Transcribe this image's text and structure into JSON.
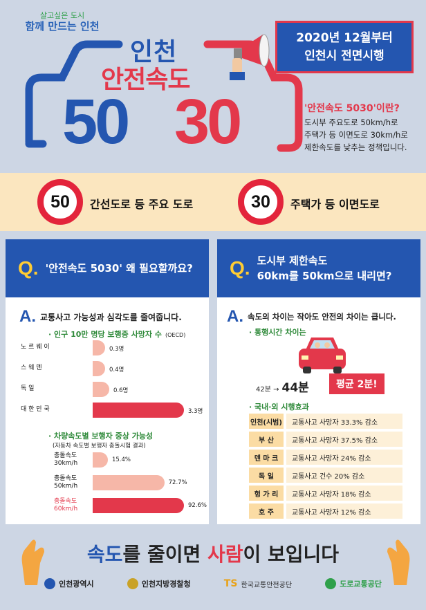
{
  "header": {
    "slogan_line1": "살고싶은 도시",
    "slogan_line2": "함께 만드는 인천",
    "title_city": "인천",
    "title_main": "안전속도",
    "big_50": "50",
    "big_30": "30",
    "date_line1": "2020년 12월부터",
    "date_line2": "인천시 전면시행"
  },
  "definition": {
    "title": "'안전속도 5030'이란?",
    "line1": "도시부 주요도로 50km/h로",
    "line2": "주택가 등 이면도로 30km/h로",
    "line3": "제한속도를 낮추는 정책입니다."
  },
  "band": {
    "sign_50": "50",
    "label_50": "간선도로 등 주요 도로",
    "sign_30": "30",
    "label_30": "주택가 등 이면도로"
  },
  "left_panel": {
    "q_mark": "Q.",
    "question": "'안전속도 5030' 왜 필요할까요?",
    "a_mark": "A.",
    "answer": "교통사고 가능성과 심각도를 줄여줍니다.",
    "chart1_title": "· 인구 10만 명당 보행중 사망자 수",
    "chart1_note": "(OECD)",
    "chart2_title": "· 차량속도별 보행자 중상 가능성",
    "chart2_note": "(자동차 속도별 보행자 충돌시험 결과)"
  },
  "chart_data": [
    {
      "type": "bar",
      "title": "인구 10만 명당 보행중 사망자 수",
      "categories": [
        "노 르 웨 이",
        "스 웨 덴",
        "독 일",
        "대 한 민 국"
      ],
      "values": [
        0.3,
        0.4,
        0.6,
        3.3
      ],
      "value_labels": [
        "0.3명",
        "0.4명",
        "0.6명",
        "3.3명"
      ],
      "colors": [
        "#f6b7a8",
        "#f6b7a8",
        "#f6b7a8",
        "#e3384b"
      ]
    },
    {
      "type": "bar",
      "title": "차량속도별 보행자 중상 가능성",
      "categories": [
        "충돌속도 30km/h",
        "충돌속도 50km/h",
        "충돌속도 60km/h"
      ],
      "values": [
        15.4,
        72.7,
        92.6
      ],
      "value_labels": [
        "15.4%",
        "72.7%",
        "92.6%"
      ],
      "colors": [
        "#f6b7a8",
        "#f6b7a8",
        "#e3384b"
      ]
    }
  ],
  "right_panel": {
    "q_mark": "Q.",
    "question_line1": "도시부 제한속도",
    "question_line2": "60km를 50km으로 내리면?",
    "a_mark": "A.",
    "answer": "속도의 차이는 작아도 안전의 차이는 큽니다.",
    "travel_title": "· 통행시간 차이는",
    "travel_from": "42분 →",
    "travel_to": "44분",
    "travel_badge": "평균 2분!",
    "effect_title": "· 국내·외 시행효과",
    "effects": [
      {
        "city": "인천(시범)",
        "desc": "교통사고 사망자 33.3% 감소"
      },
      {
        "city": "부 산",
        "desc": "교통사고 사망자 37.5% 감소"
      },
      {
        "city": "덴 마 크",
        "desc": "교통사고 사망자 24% 감소"
      },
      {
        "city": "독 일",
        "desc": "교통사고 건수 20% 감소"
      },
      {
        "city": "헝 가 리",
        "desc": "교통사고 사망자 18% 감소"
      },
      {
        "city": "호 주",
        "desc": "교통사고 사망자 12% 감소"
      }
    ]
  },
  "footer": {
    "msg_a": "속도",
    "msg_b": "를 줄이면 ",
    "msg_c": "사람",
    "msg_d": "이 보입니다",
    "logos": [
      "인천광역시",
      "인천지방경찰청",
      "한국교통안전공단",
      "도로교통공단"
    ],
    "logo_ts": "TS"
  },
  "colors": {
    "blue": "#2456b0",
    "red": "#e3384b",
    "pink": "#f6b7a8",
    "cream": "#fbe6bf"
  }
}
